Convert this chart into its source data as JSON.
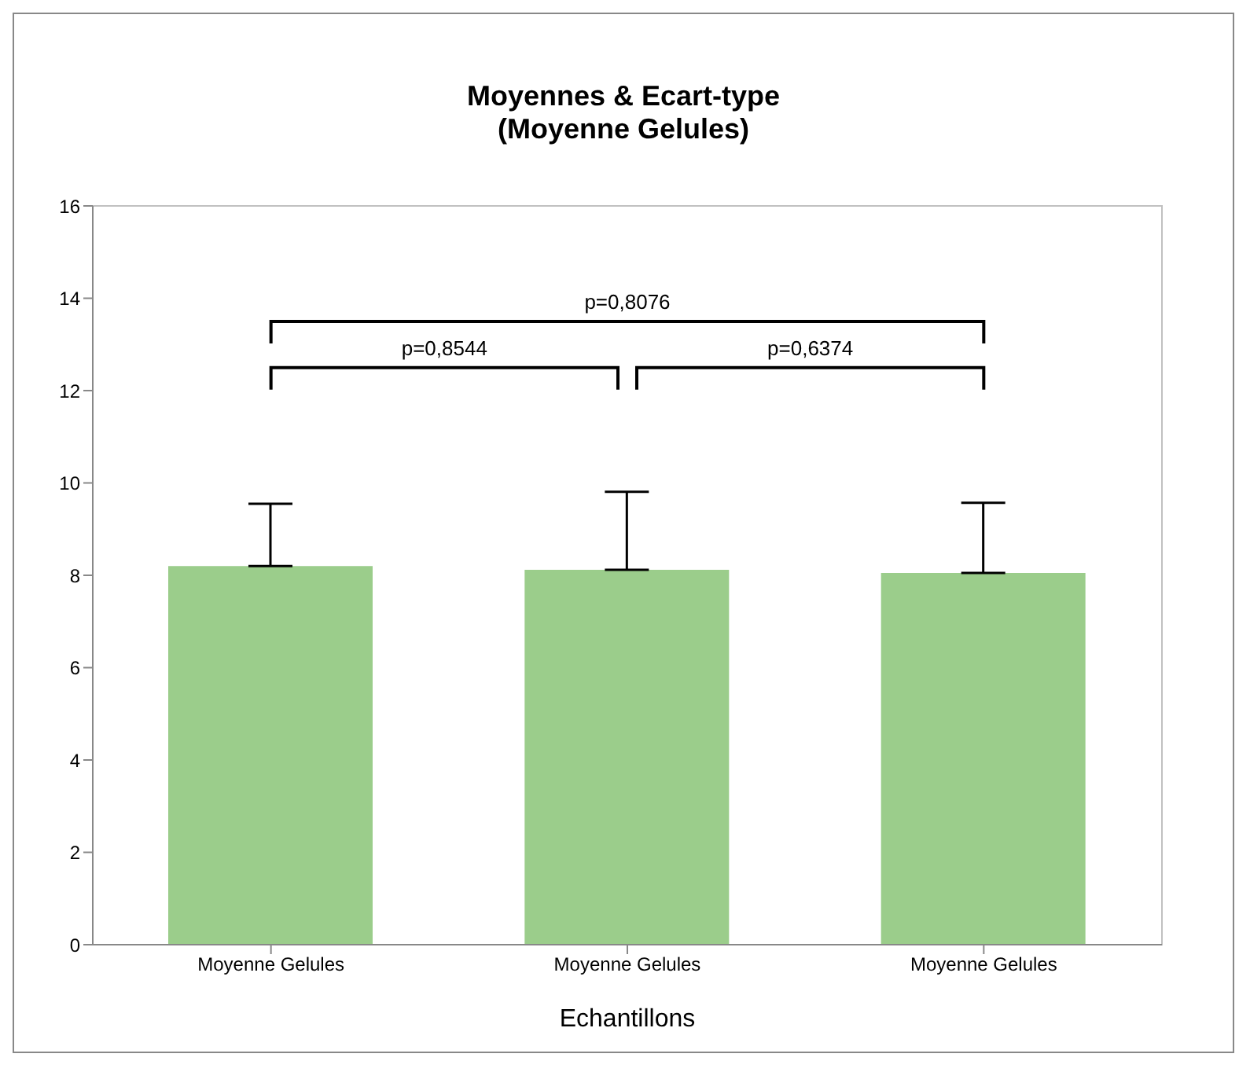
{
  "chart_data": {
    "type": "bar",
    "title": "Moyennes & Ecart-type\n(Moyenne Gelules)",
    "xlabel": "Echantillons",
    "categories": [
      "Moyenne Gelules",
      "Moyenne Gelules",
      "Moyenne Gelules"
    ],
    "values": [
      8.2,
      8.12,
      8.05
    ],
    "color": "#9bcd8b",
    "errors": [
      [
        8.2,
        9.55
      ],
      [
        8.12,
        9.81
      ],
      [
        8.05,
        9.57
      ]
    ],
    "ylim": [
      0,
      16
    ],
    "yticks": [
      0,
      2,
      4,
      6,
      8,
      10,
      12,
      14,
      16
    ],
    "annotations": [
      "p=0,8076",
      "p=0,8544",
      "p=0,6374"
    ]
  }
}
